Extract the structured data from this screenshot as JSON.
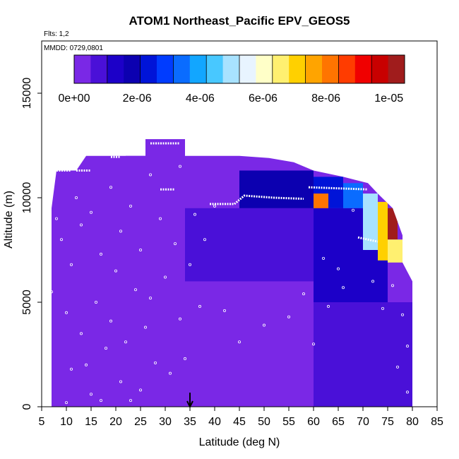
{
  "chart_data": {
    "type": "heatmap",
    "title": "ATOM1 Northeast_Pacific EPV_GEOS5",
    "flights_text": "Flts: 1,2",
    "date_text": "MMDD: 0729,0801",
    "xlabel": "Latitude (deg N)",
    "ylabel": "Altitude (m)",
    "xlim": [
      5,
      85
    ],
    "ylim": [
      0,
      17500
    ],
    "xticks": [
      5,
      10,
      15,
      20,
      25,
      30,
      35,
      40,
      45,
      50,
      55,
      60,
      65,
      70,
      75,
      80,
      85
    ],
    "xtick_labels": [
      "5",
      "10",
      "15",
      "20",
      "25",
      "30",
      "35",
      "40",
      "45",
      "50",
      "55",
      "60",
      "65",
      "70",
      "75",
      "80",
      "85"
    ],
    "yticks": [
      0,
      5000,
      10000,
      15000
    ],
    "ytick_labels": [
      "0",
      "5000",
      "10000",
      "15000"
    ],
    "grid": false,
    "marker_latitude": 35,
    "colorbar": {
      "range": [
        0,
        1.05e-05
      ],
      "ticks": [
        0,
        2e-06,
        4e-06,
        6e-06,
        8e-06,
        1e-05
      ],
      "tick_labels": [
        "0e+00",
        "2e-06",
        "4e-06",
        "6e-06",
        "8e-06",
        "1e-05"
      ],
      "colors": [
        "#7a28e6",
        "#4a10d8",
        "#1c00c8",
        "#0c00b0",
        "#0014d8",
        "#003cff",
        "#0a6cff",
        "#12a6ff",
        "#48c8ff",
        "#a8e2ff",
        "#e8f4ff",
        "#ffffc8",
        "#fff070",
        "#ffd000",
        "#ffa400",
        "#ff7400",
        "#ff3c00",
        "#f00000",
        "#c80000",
        "#a01c1c"
      ]
    },
    "top_profile": [
      [
        7,
        9500
      ],
      [
        8,
        11300
      ],
      [
        12,
        11300
      ],
      [
        14,
        12000
      ],
      [
        26,
        12000
      ],
      [
        26,
        12800
      ],
      [
        34,
        12800
      ],
      [
        34,
        12000
      ],
      [
        45,
        12000
      ],
      [
        51,
        11900
      ],
      [
        56,
        11700
      ],
      [
        60,
        11300
      ],
      [
        66,
        11000
      ],
      [
        71,
        10700
      ],
      [
        73,
        10200
      ],
      [
        76,
        9500
      ],
      [
        78,
        8200
      ],
      [
        78,
        6900
      ],
      [
        80,
        6000
      ],
      [
        80,
        0
      ]
    ],
    "cells": [
      {
        "lat0": 5,
        "lat1": 12,
        "alt0": 0,
        "alt1": 9500,
        "epv": 1e-07
      },
      {
        "lat0": 12,
        "lat1": 22,
        "alt0": 0,
        "alt1": 11000,
        "epv": 2e-07
      },
      {
        "lat0": 22,
        "lat1": 34,
        "alt0": 0,
        "alt1": 12800,
        "epv": 3e-07
      },
      {
        "lat0": 34,
        "lat1": 45,
        "alt0": 0,
        "alt1": 6000,
        "epv": 4e-07
      },
      {
        "lat0": 45,
        "lat1": 60,
        "alt0": 0,
        "alt1": 5000,
        "epv": 5e-07
      },
      {
        "lat0": 60,
        "lat1": 80,
        "alt0": 0,
        "alt1": 5000,
        "epv": 8e-07
      },
      {
        "lat0": 34,
        "lat1": 60,
        "alt0": 6000,
        "alt1": 9500,
        "epv": 1e-06
      },
      {
        "lat0": 60,
        "lat1": 75,
        "alt0": 5000,
        "alt1": 9500,
        "epv": 1.3e-06
      },
      {
        "lat0": 45,
        "lat1": 60,
        "alt0": 9500,
        "alt1": 11300,
        "epv": 1.6e-06
      },
      {
        "lat0": 60,
        "lat1": 66,
        "alt0": 9500,
        "alt1": 11000,
        "epv": 2.6e-06
      },
      {
        "lat0": 66,
        "lat1": 70,
        "alt0": 9500,
        "alt1": 10700,
        "epv": 3.6e-06
      },
      {
        "lat0": 70,
        "lat1": 73,
        "alt0": 7500,
        "alt1": 10200,
        "epv": 4.8e-06
      },
      {
        "lat0": 73,
        "lat1": 75,
        "alt0": 7000,
        "alt1": 9800,
        "epv": 7e-06
      },
      {
        "lat0": 75,
        "lat1": 77,
        "alt0": 8000,
        "alt1": 9500,
        "epv": 1e-05
      },
      {
        "lat0": 75,
        "lat1": 78,
        "alt0": 6900,
        "alt1": 8000,
        "epv": 6.5e-06
      },
      {
        "lat0": 60,
        "lat1": 63,
        "alt0": 9500,
        "alt1": 10200,
        "epv": 8e-06
      }
    ],
    "flight_tracks": [
      {
        "points": [
          [
            27,
            12600
          ],
          [
            33,
            12600
          ]
        ]
      },
      {
        "points": [
          [
            29,
            10400
          ],
          [
            32,
            10400
          ]
        ]
      },
      {
        "points": [
          [
            39,
            9700
          ],
          [
            44,
            9700
          ],
          [
            46,
            10100
          ],
          [
            52,
            10000
          ],
          [
            58,
            9950
          ]
        ]
      },
      {
        "points": [
          [
            59,
            10500
          ],
          [
            71,
            10400
          ]
        ]
      },
      {
        "points": [
          [
            69,
            8100
          ],
          [
            73,
            7900
          ]
        ]
      },
      {
        "points": [
          [
            8,
            11300
          ],
          [
            11,
            11300
          ]
        ]
      },
      {
        "points": [
          [
            12,
            11300
          ],
          [
            15,
            11300
          ]
        ]
      },
      {
        "points": [
          [
            19,
            11950
          ],
          [
            21,
            11950
          ]
        ]
      }
    ],
    "scatter_samples": [
      [
        6,
        2500
      ],
      [
        7,
        5500
      ],
      [
        8,
        9000
      ],
      [
        9,
        8000
      ],
      [
        10,
        200
      ],
      [
        10,
        4500
      ],
      [
        11,
        6800
      ],
      [
        11,
        1800
      ],
      [
        12,
        10000
      ],
      [
        13,
        3500
      ],
      [
        13,
        8700
      ],
      [
        14,
        2000
      ],
      [
        15,
        600
      ],
      [
        15,
        9300
      ],
      [
        16,
        5000
      ],
      [
        17,
        7300
      ],
      [
        17,
        300
      ],
      [
        18,
        2800
      ],
      [
        19,
        10500
      ],
      [
        19,
        4100
      ],
      [
        20,
        6500
      ],
      [
        21,
        1200
      ],
      [
        21,
        8400
      ],
      [
        22,
        3100
      ],
      [
        23,
        300
      ],
      [
        23,
        9600
      ],
      [
        24,
        5600
      ],
      [
        25,
        800
      ],
      [
        25,
        7500
      ],
      [
        26,
        3800
      ],
      [
        27,
        11100
      ],
      [
        27,
        5200
      ],
      [
        28,
        2100
      ],
      [
        29,
        9000
      ],
      [
        30,
        6200
      ],
      [
        31,
        1600
      ],
      [
        32,
        7800
      ],
      [
        33,
        4200
      ],
      [
        33,
        11500
      ],
      [
        34,
        2300
      ],
      [
        35,
        6800
      ],
      [
        36,
        9200
      ],
      [
        37,
        4800
      ],
      [
        38,
        8000
      ],
      [
        40,
        9600
      ],
      [
        42,
        4600
      ],
      [
        45,
        3100
      ],
      [
        50,
        3900
      ],
      [
        55,
        4300
      ],
      [
        58,
        5400
      ],
      [
        60,
        3000
      ],
      [
        62,
        7100
      ],
      [
        63,
        4800
      ],
      [
        65,
        6600
      ],
      [
        66,
        5700
      ],
      [
        68,
        9400
      ],
      [
        70,
        11000
      ],
      [
        72,
        6000
      ],
      [
        74,
        4700
      ],
      [
        76,
        5800
      ],
      [
        77,
        1900
      ],
      [
        78,
        4400
      ],
      [
        79,
        700
      ],
      [
        79,
        2900
      ]
    ]
  }
}
